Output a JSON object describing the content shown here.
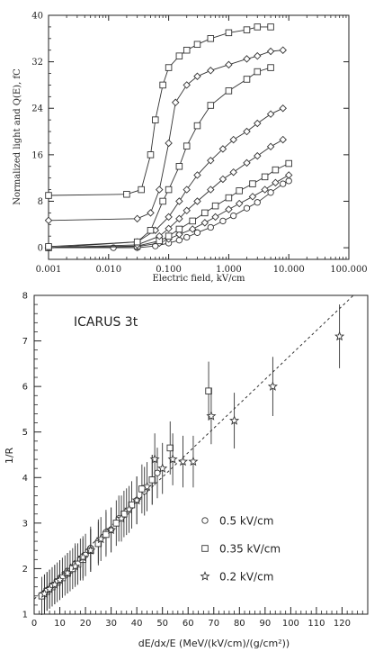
{
  "chart_data": [
    {
      "type": "line",
      "xscale": "log",
      "xlabel": "Electric field, kV/cm",
      "ylabel": "Normalized light and Q(E), fC",
      "xlim": [
        0.001,
        100
      ],
      "ylim": [
        -2,
        40
      ],
      "xticks": [
        "0.001",
        "0.010",
        "0.100",
        "1.000",
        "10.000",
        "100.000"
      ],
      "yticks": [
        "0",
        "8",
        "16",
        "24",
        "32",
        "40"
      ],
      "series": [
        {
          "marker": "circle",
          "x": [
            0.001,
            0.012,
            0.03,
            0.06,
            0.1,
            0.15,
            0.2,
            0.3,
            0.5,
            0.8,
            1.2,
            2,
            3,
            5,
            8,
            10
          ],
          "y": [
            0,
            0,
            0,
            0.3,
            0.8,
            1.3,
            1.8,
            2.6,
            3.5,
            4.6,
            5.5,
            6.8,
            7.8,
            9.5,
            11,
            11.5
          ]
        },
        {
          "marker": "diamond",
          "x": [
            0.001,
            0.03,
            0.07,
            0.1,
            0.15,
            0.25,
            0.4,
            0.6,
            1,
            1.5,
            2.5,
            4,
            6,
            10
          ],
          "y": [
            0,
            0.2,
            0.8,
            1.5,
            2.3,
            3.2,
            4.3,
            5.3,
            6.6,
            7.6,
            8.8,
            10,
            11.2,
            12.5
          ]
        },
        {
          "marker": "square",
          "x": [
            0.001,
            0.03,
            0.07,
            0.1,
            0.15,
            0.25,
            0.4,
            0.6,
            1,
            1.5,
            2.5,
            4,
            6,
            10
          ],
          "y": [
            0,
            0.3,
            1.2,
            2,
            3.2,
            4.6,
            6,
            7.2,
            8.6,
            9.8,
            11,
            12.2,
            13.4,
            14.5
          ]
        },
        {
          "marker": "diamond",
          "x": [
            0.001,
            0.03,
            0.07,
            0.1,
            0.15,
            0.2,
            0.3,
            0.5,
            0.8,
            1.2,
            2,
            3,
            5,
            8
          ],
          "y": [
            0,
            0.5,
            2,
            3.3,
            5,
            6.4,
            8,
            10,
            11.8,
            13,
            14.6,
            15.8,
            17.4,
            18.6
          ]
        },
        {
          "marker": "diamond",
          "x": [
            0.001,
            0.03,
            0.06,
            0.1,
            0.15,
            0.2,
            0.3,
            0.5,
            0.8,
            1.2,
            2,
            3,
            5,
            8
          ],
          "y": [
            0,
            1,
            3,
            5.3,
            8,
            10,
            12.5,
            15,
            17,
            18.6,
            20,
            21.4,
            23,
            24
          ]
        },
        {
          "marker": "square",
          "x": [
            0.001,
            0.03,
            0.05,
            0.08,
            0.1,
            0.15,
            0.2,
            0.3,
            0.5,
            1,
            2,
            3,
            5
          ],
          "y": [
            0.2,
            1,
            3,
            8,
            10,
            14,
            17.5,
            21,
            24.5,
            27,
            29,
            30.3,
            31
          ]
        },
        {
          "marker": "diamond",
          "x": [
            0.001,
            0.03,
            0.05,
            0.07,
            0.1,
            0.13,
            0.2,
            0.3,
            0.5,
            1,
            2,
            3,
            5,
            8
          ],
          "y": [
            4.7,
            5,
            6,
            10,
            18,
            25,
            28,
            29.5,
            30.5,
            31.5,
            32.5,
            33,
            33.8,
            34
          ]
        },
        {
          "marker": "square",
          "x": [
            0.001,
            0.02,
            0.035,
            0.05,
            0.06,
            0.08,
            0.1,
            0.15,
            0.2,
            0.3,
            0.5,
            1,
            2,
            3,
            5
          ],
          "y": [
            9,
            9.2,
            10,
            16,
            22,
            28,
            31,
            33,
            34,
            35,
            36,
            37,
            37.5,
            38,
            38
          ]
        }
      ]
    },
    {
      "type": "scatter",
      "annotation": "ICARUS 3t",
      "ylabel": "1/R",
      "xlabel": "dE/dx/E  (MeV/(kV/cm)/(g/cm²))",
      "xlim": [
        0,
        130
      ],
      "ylim": [
        1,
        8
      ],
      "xticks": [
        "0",
        "10",
        "20",
        "30",
        "40",
        "50",
        "60",
        "70",
        "80",
        "90",
        "100",
        "110",
        "120"
      ],
      "yticks": [
        "1",
        "2",
        "3",
        "4",
        "5",
        "6",
        "7",
        "8"
      ],
      "fit_line": {
        "style": "dashed",
        "x": [
          0,
          130
        ],
        "y": [
          1.33,
          8.3
        ]
      },
      "series": [
        {
          "name": "0.5 kV/cm",
          "marker": "circle",
          "x": [
            4,
            5,
            6,
            7,
            8,
            10,
            12,
            14,
            16,
            18,
            20,
            22,
            25,
            28,
            30,
            33,
            36,
            40,
            43,
            46,
            48
          ],
          "y": [
            1.45,
            1.5,
            1.55,
            1.6,
            1.65,
            1.75,
            1.85,
            1.95,
            2.1,
            2.2,
            2.3,
            2.45,
            2.6,
            2.8,
            2.85,
            3.1,
            3.25,
            3.5,
            3.7,
            3.95,
            4.1
          ]
        },
        {
          "name": "0.35 kV/cm",
          "marker": "square",
          "x": [
            3,
            5,
            7,
            9,
            11,
            13,
            15,
            17,
            19,
            22,
            25,
            28,
            32,
            35,
            38,
            42,
            46,
            53,
            68
          ],
          "y": [
            1.4,
            1.5,
            1.6,
            1.7,
            1.8,
            1.9,
            2.0,
            2.1,
            2.2,
            2.4,
            2.55,
            2.75,
            3.0,
            3.2,
            3.4,
            3.75,
            3.95,
            4.65,
            5.9
          ]
        },
        {
          "name": "0.2 kV/cm",
          "marker": "star",
          "x": [
            4,
            6,
            8,
            10,
            13,
            16,
            19,
            22,
            26,
            30,
            34,
            37,
            40,
            44,
            47,
            50,
            54,
            58,
            62,
            69,
            78,
            93,
            119
          ],
          "y": [
            1.45,
            1.55,
            1.65,
            1.75,
            1.9,
            2.05,
            2.25,
            2.4,
            2.65,
            2.85,
            3.1,
            3.3,
            3.5,
            3.8,
            4.4,
            4.2,
            4.4,
            4.35,
            4.35,
            5.35,
            5.25,
            6.0,
            7.1
          ]
        }
      ]
    }
  ]
}
